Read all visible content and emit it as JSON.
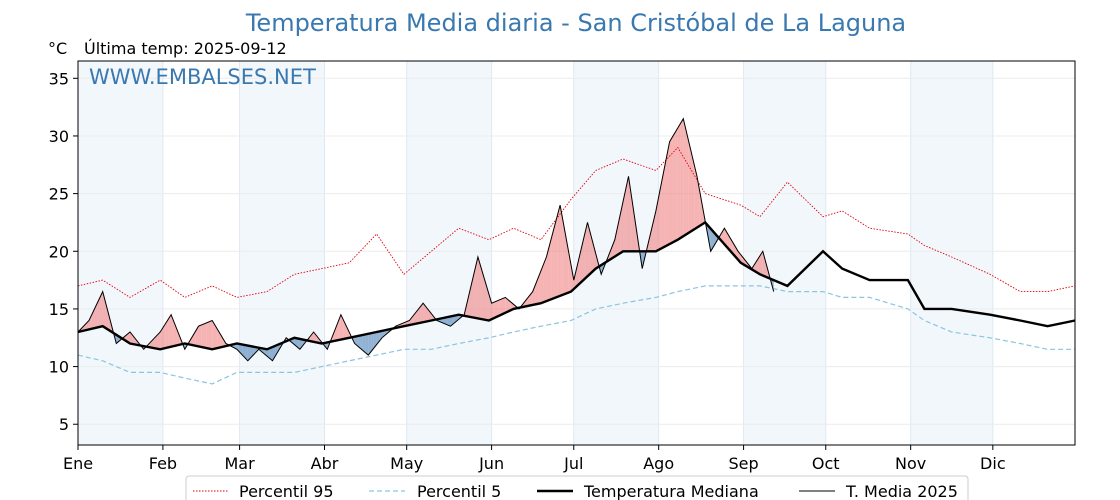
{
  "chart_data": {
    "type": "line",
    "title": "Temperatura Media diaria - San Cristóbal de La Laguna",
    "unit_label": "°C",
    "subtitle": "Última temp: 2025-09-12",
    "watermark": "WWW.EMBALSES.NET",
    "ylim": [
      3.2,
      36.5
    ],
    "yticks": [
      5,
      10,
      15,
      20,
      25,
      30,
      35
    ],
    "month_labels": [
      "Ene",
      "Feb",
      "Mar",
      "Abr",
      "May",
      "Jun",
      "Jul",
      "Ago",
      "Sep",
      "Oct",
      "Nov",
      "Dic"
    ],
    "x_days_total": 365,
    "grid": true,
    "legend_position": "bottom-center",
    "colors": {
      "p95": "#e0000a",
      "p5": "#8cc4e0",
      "median": "#000000",
      "current": "#000000",
      "above": "#f08080",
      "below": "#4a7eb5",
      "band": "#f2f7fc",
      "title": "#3a78b0"
    },
    "series": [
      {
        "name": "Percentil 95",
        "style": "dotted-red",
        "x": [
          1,
          10,
          20,
          31,
          40,
          50,
          59,
          70,
          80,
          90,
          100,
          110,
          120,
          130,
          140,
          151,
          160,
          170,
          181,
          190,
          200,
          212,
          220,
          230,
          243,
          250,
          260,
          273,
          280,
          290,
          304,
          310,
          320,
          334,
          345,
          355,
          365
        ],
        "values": [
          17.0,
          17.5,
          16.0,
          17.5,
          16.0,
          17.0,
          16.0,
          16.5,
          18.0,
          18.5,
          19.0,
          21.5,
          18.0,
          20.0,
          22.0,
          21.0,
          22.0,
          21.0,
          24.5,
          27.0,
          28.0,
          27.0,
          29.0,
          25.0,
          24.0,
          23.0,
          26.0,
          23.0,
          23.5,
          22.0,
          21.5,
          20.5,
          19.5,
          18.0,
          16.5,
          16.5,
          17.0
        ]
      },
      {
        "name": "Percentil 5",
        "style": "dashed-lightblue",
        "x": [
          1,
          10,
          20,
          31,
          40,
          50,
          59,
          70,
          80,
          90,
          100,
          110,
          120,
          130,
          140,
          151,
          160,
          170,
          181,
          190,
          200,
          212,
          220,
          230,
          243,
          250,
          260,
          273,
          280,
          290,
          304,
          310,
          320,
          334,
          345,
          355,
          365
        ],
        "values": [
          11.0,
          10.5,
          9.5,
          9.5,
          9.0,
          8.5,
          9.5,
          9.5,
          9.5,
          10.0,
          10.5,
          11.0,
          11.5,
          11.5,
          12.0,
          12.5,
          13.0,
          13.5,
          14.0,
          15.0,
          15.5,
          16.0,
          16.5,
          17.0,
          17.0,
          17.0,
          16.5,
          16.5,
          16.0,
          16.0,
          15.0,
          14.0,
          13.0,
          12.5,
          12.0,
          11.5,
          11.5
        ]
      },
      {
        "name": "Temperatura Mediana",
        "style": "thick-black",
        "x": [
          1,
          10,
          20,
          31,
          40,
          50,
          59,
          70,
          80,
          90,
          100,
          110,
          120,
          130,
          140,
          151,
          160,
          170,
          181,
          190,
          200,
          212,
          220,
          230,
          243,
          250,
          260,
          273,
          280,
          290,
          304,
          310,
          320,
          334,
          345,
          355,
          365
        ],
        "values": [
          13.0,
          13.5,
          12.0,
          11.5,
          12.0,
          11.5,
          12.0,
          11.5,
          12.5,
          12.0,
          12.5,
          13.0,
          13.5,
          14.0,
          14.5,
          14.0,
          15.0,
          15.5,
          16.5,
          18.5,
          20.0,
          20.0,
          21.0,
          22.5,
          19.0,
          18.0,
          17.0,
          20.0,
          18.5,
          17.5,
          17.5,
          15.0,
          15.0,
          14.5,
          14.0,
          13.5,
          14.0
        ]
      },
      {
        "name": "T. Media 2025",
        "style": "thin-black",
        "x": [
          1,
          5,
          10,
          15,
          20,
          25,
          31,
          35,
          40,
          45,
          50,
          55,
          59,
          63,
          67,
          72,
          77,
          82,
          87,
          92,
          97,
          102,
          107,
          112,
          117,
          122,
          127,
          132,
          137,
          142,
          147,
          152,
          157,
          162,
          167,
          172,
          177,
          182,
          187,
          192,
          197,
          202,
          207,
          212,
          217,
          222,
          227,
          232,
          237,
          242,
          247,
          251,
          255
        ],
        "values": [
          13.0,
          14.0,
          16.5,
          12.0,
          13.0,
          11.5,
          13.0,
          14.5,
          11.5,
          13.5,
          14.0,
          12.0,
          11.5,
          10.5,
          11.5,
          10.5,
          12.5,
          11.5,
          13.0,
          11.5,
          14.5,
          12.0,
          11.0,
          12.5,
          13.5,
          14.0,
          15.5,
          14.0,
          13.5,
          14.5,
          19.5,
          15.5,
          16.0,
          15.0,
          16.5,
          19.5,
          24.0,
          17.5,
          22.5,
          18.0,
          21.0,
          26.5,
          18.5,
          23.5,
          29.5,
          31.5,
          26.5,
          20.0,
          22.0,
          20.0,
          18.5,
          20.0,
          16.5
        ]
      }
    ]
  },
  "legend": {
    "p95": "Percentil 95",
    "p5": "Percentil 5",
    "median": "Temperatura Mediana",
    "current": "T. Media 2025"
  }
}
